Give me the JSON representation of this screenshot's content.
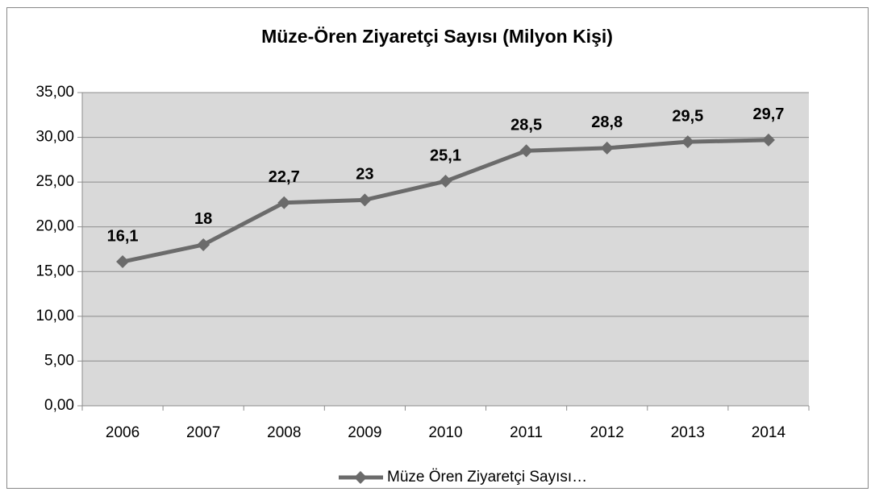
{
  "chart_data": {
    "type": "line",
    "title": "Müze-Ören Ziyaretçi Sayısı (Milyon Kişi)",
    "categories": [
      "2006",
      "2007",
      "2008",
      "2009",
      "2010",
      "2011",
      "2012",
      "2013",
      "2014"
    ],
    "series": [
      {
        "name": "Müze Ören Ziyaretçi Sayısı…",
        "color": "#6b6b6b",
        "values": [
          16.1,
          18,
          22.7,
          23,
          25.1,
          28.5,
          28.8,
          29.5,
          29.7
        ],
        "value_labels": [
          "16,1",
          "18",
          "22,7",
          "23",
          "25,1",
          "28,5",
          "28,8",
          "29,5",
          "29,7"
        ]
      }
    ],
    "ylim": [
      0,
      35
    ],
    "yticks": [
      {
        "value": 0,
        "label": "0,00"
      },
      {
        "value": 5,
        "label": "5,00"
      },
      {
        "value": 10,
        "label": "10,00"
      },
      {
        "value": 15,
        "label": "15,00"
      },
      {
        "value": 20,
        "label": "20,00"
      },
      {
        "value": 25,
        "label": "25,00"
      },
      {
        "value": 30,
        "label": "30,00"
      },
      {
        "value": 35,
        "label": "35,00"
      }
    ],
    "grid": true,
    "legend": "bottom"
  }
}
